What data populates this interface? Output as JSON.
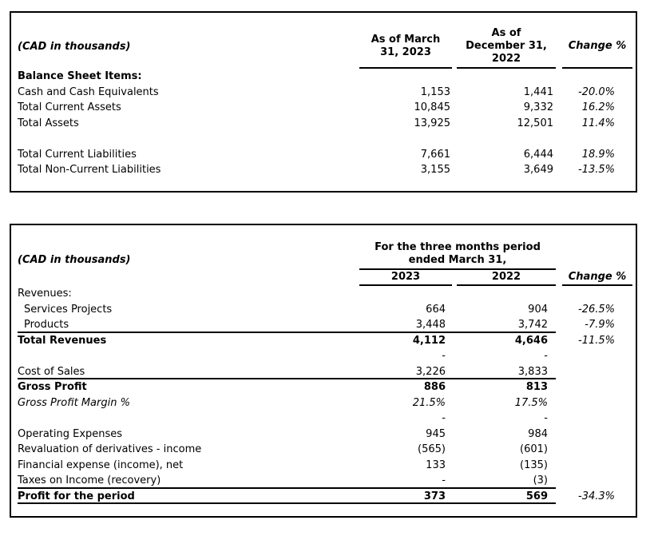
{
  "page": {
    "background": "#ffffff",
    "text_color": "#000000",
    "border_color": "#000000"
  },
  "balance_sheet_table": {
    "units_label": "(CAD in thousands)",
    "columns": {
      "col_2023": "As of March\n31, 2023",
      "col_2022": "As of\nDecember 31,\n2022",
      "change": "Change %"
    },
    "rows": [
      {
        "label": "Balance Sheet Items:",
        "y2023": "",
        "y2022": "",
        "change": ""
      },
      {
        "label": "Cash and Cash Equivalents",
        "y2023": "1,153",
        "y2022": "1,441",
        "change": "-20.0%"
      },
      {
        "label": "Total Current Assets",
        "y2023": "10,845",
        "y2022": "9,332",
        "change": "16.2%"
      },
      {
        "label": "Total Assets",
        "y2023": "13,925",
        "y2022": "12,501",
        "change": "11.4%"
      },
      {
        "label": "",
        "y2023": "",
        "y2022": "",
        "change": ""
      },
      {
        "label": "Total Current Liabilities",
        "y2023": "7,661",
        "y2022": "6,444",
        "change": "18.9%"
      },
      {
        "label": "Total Non-Current Liabilities",
        "y2023": "3,155",
        "y2022": "3,649",
        "change": "-13.5%"
      }
    ]
  },
  "income_statement_table": {
    "units_label": "(CAD in thousands)",
    "period_header": "For the three months period\nended March 31,",
    "columns": {
      "year_1": "2023",
      "year_2": "2022",
      "change": "Change %"
    },
    "rows": [
      {
        "label": "Revenues:",
        "y2023": "",
        "y2022": "",
        "change": ""
      },
      {
        "label": "Services Projects",
        "y2023": "664",
        "y2022": "904",
        "change": "-26.5%"
      },
      {
        "label": "Products",
        "y2023": "3,448",
        "y2022": "3,742",
        "change": "-7.9%"
      },
      {
        "label": "Total Revenues",
        "y2023": "4,112",
        "y2022": "4,646",
        "change": "-11.5%"
      },
      {
        "label": "",
        "y2023": "-",
        "y2022": "-",
        "change": ""
      },
      {
        "label": "Cost of Sales",
        "y2023": "3,226",
        "y2022": "3,833",
        "change": ""
      },
      {
        "label": "Gross Profit",
        "y2023": "886",
        "y2022": "813",
        "change": ""
      },
      {
        "label": "Gross Profit Margin %",
        "y2023": "21.5%",
        "y2022": "17.5%",
        "change": ""
      },
      {
        "label": "",
        "y2023": "-",
        "y2022": "-",
        "change": ""
      },
      {
        "label": "Operating Expenses",
        "y2023": "945",
        "y2022": "984",
        "change": ""
      },
      {
        "label": "Revaluation of derivatives - income",
        "y2023": "(565)",
        "y2022": "(601)",
        "change": ""
      },
      {
        "label": "Financial expense (income), net",
        "y2023": "133",
        "y2022": "(135)",
        "change": ""
      },
      {
        "label": "Taxes on Income (recovery)",
        "y2023": "-",
        "y2022": "(3)",
        "change": ""
      },
      {
        "label": "Profit for the period",
        "y2023": "373",
        "y2022": "569",
        "change": "-34.3%"
      }
    ]
  }
}
